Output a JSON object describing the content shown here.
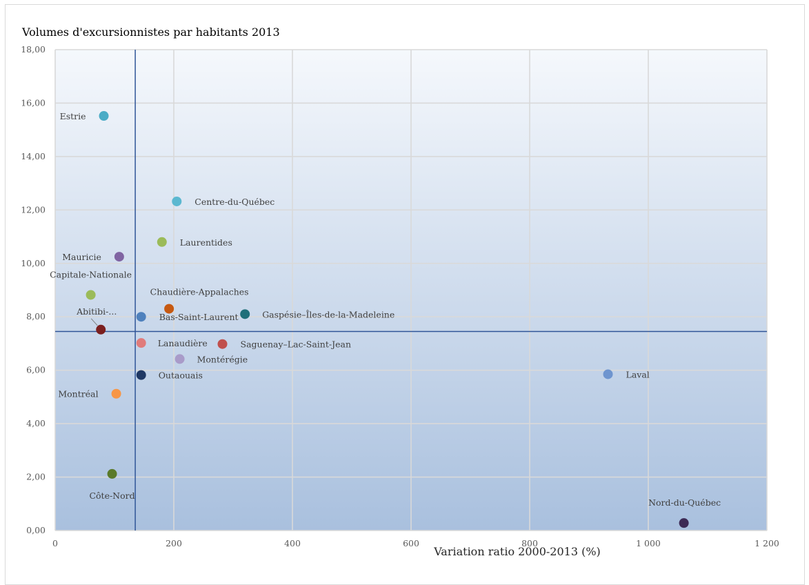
{
  "chart_data": {
    "type": "scatter",
    "title": "Volumes d'excursionnistes par habitants 2013",
    "xlabel": "Variation ratio 2000-2013 (%)",
    "ylabel": "",
    "xlim": [
      0,
      1200
    ],
    "ylim": [
      0,
      18
    ],
    "x_ticks": [
      0,
      200,
      400,
      600,
      800,
      1000,
      1200
    ],
    "x_tick_labels": [
      "0",
      "200",
      "400",
      "600",
      "800",
      "1 000",
      "1 200"
    ],
    "y_ticks": [
      0,
      2,
      4,
      6,
      8,
      10,
      12,
      14,
      16,
      18
    ],
    "y_tick_labels": [
      "0,00",
      "2,00",
      "4,00",
      "6,00",
      "8,00",
      "10,00",
      "12,00",
      "14,00",
      "16,00",
      "18,00"
    ],
    "grid": true,
    "legend": "none",
    "reference_lines": {
      "x": 135,
      "y": 7.45,
      "color": "#2f5597"
    },
    "points": [
      {
        "label": "Estrie",
        "x": 82,
        "y": 15.52,
        "color": "#4bacc6"
      },
      {
        "label": "Centre-du-Québec",
        "x": 205,
        "y": 12.32,
        "color": "#5bb8d0"
      },
      {
        "label": "Laurentides",
        "x": 180,
        "y": 10.8,
        "color": "#9bbb59"
      },
      {
        "label": "Mauricie",
        "x": 108,
        "y": 10.25,
        "color": "#8064a2"
      },
      {
        "label": "Capitale-Nationale",
        "x": 60,
        "y": 8.82,
        "color": "#9bbb59"
      },
      {
        "label": "Chaudière-Appalaches",
        "x": 192,
        "y": 8.3,
        "color": "#c65911"
      },
      {
        "label": "Gaspésie–Îles-de-la-Madeleine",
        "x": 320,
        "y": 8.1,
        "color": "#1f6f7a"
      },
      {
        "label": "Bas-Saint-Laurent",
        "x": 145,
        "y": 8.0,
        "color": "#4f81bd"
      },
      {
        "label": "Abitibi-...",
        "x": 77,
        "y": 7.52,
        "color": "#7b1f1f"
      },
      {
        "label": "Lanaudière",
        "x": 145,
        "y": 7.02,
        "color": "#e07b7b"
      },
      {
        "label": "Saguenay–Lac-Saint-Jean",
        "x": 282,
        "y": 6.98,
        "color": "#c0504d"
      },
      {
        "label": "Montérégie",
        "x": 210,
        "y": 6.42,
        "color": "#a99bc9"
      },
      {
        "label": "Outaouais",
        "x": 145,
        "y": 5.82,
        "color": "#1f3864"
      },
      {
        "label": "Laval",
        "x": 932,
        "y": 5.85,
        "color": "#6f95cf"
      },
      {
        "label": "Montréal",
        "x": 103,
        "y": 5.12,
        "color": "#f79646"
      },
      {
        "label": "Côte-Nord",
        "x": 96,
        "y": 2.12,
        "color": "#5a7a2a"
      },
      {
        "label": "Nord-du-Québec",
        "x": 1060,
        "y": 0.28,
        "color": "#3d2a55"
      }
    ]
  }
}
